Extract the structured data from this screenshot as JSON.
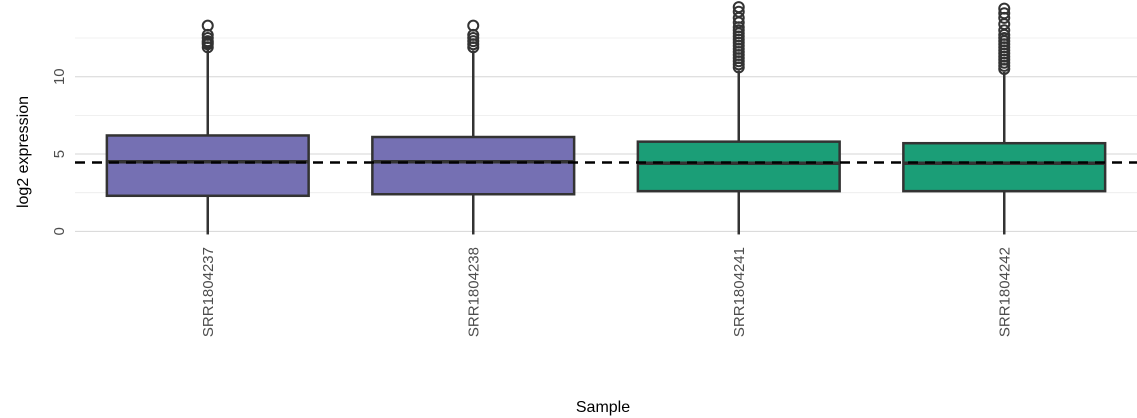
{
  "chart_data": {
    "type": "box",
    "title": "",
    "xlabel": "Sample",
    "ylabel": "log2 expression",
    "ylim": [
      -0.3,
      14.7
    ],
    "yticks": [
      0,
      5,
      10
    ],
    "grid": true,
    "reference_line": {
      "y": 4.45,
      "style": "dashed",
      "color": "#000000"
    },
    "categories": [
      "SRR1804237",
      "SRR1804238",
      "SRR1804241",
      "SRR1804242"
    ],
    "boxes": [
      {
        "category": "SRR1804237",
        "min": -0.2,
        "q1": 2.3,
        "median": 4.5,
        "q3": 6.2,
        "whisker_high": 11.8,
        "outliers": [
          11.9,
          12.1,
          12.2,
          12.3,
          12.5,
          12.7,
          13.3
        ],
        "color": "#7570b3"
      },
      {
        "category": "SRR1804238",
        "min": -0.2,
        "q1": 2.4,
        "median": 4.5,
        "q3": 6.1,
        "whisker_high": 11.7,
        "outliers": [
          11.9,
          12.1,
          12.3,
          12.5,
          12.7,
          13.3
        ],
        "color": "#7570b3"
      },
      {
        "category": "SRR1804241",
        "min": -0.2,
        "q1": 2.6,
        "median": 4.4,
        "q3": 5.8,
        "whisker_high": 10.4,
        "outliers": [
          10.6,
          10.8,
          11.0,
          11.2,
          11.4,
          11.6,
          11.8,
          12.0,
          12.2,
          12.4,
          12.6,
          12.8,
          13.0,
          13.2,
          13.5,
          13.8,
          14.2,
          14.5
        ],
        "color": "#1b9e77"
      },
      {
        "category": "SRR1804242",
        "min": -0.2,
        "q1": 2.6,
        "median": 4.4,
        "q3": 5.7,
        "whisker_high": 10.3,
        "outliers": [
          10.5,
          10.7,
          10.9,
          11.1,
          11.3,
          11.5,
          11.7,
          11.9,
          12.1,
          12.3,
          12.5,
          12.7,
          13.0,
          13.4,
          13.8,
          14.1,
          14.4
        ],
        "color": "#1b9e77"
      }
    ]
  }
}
